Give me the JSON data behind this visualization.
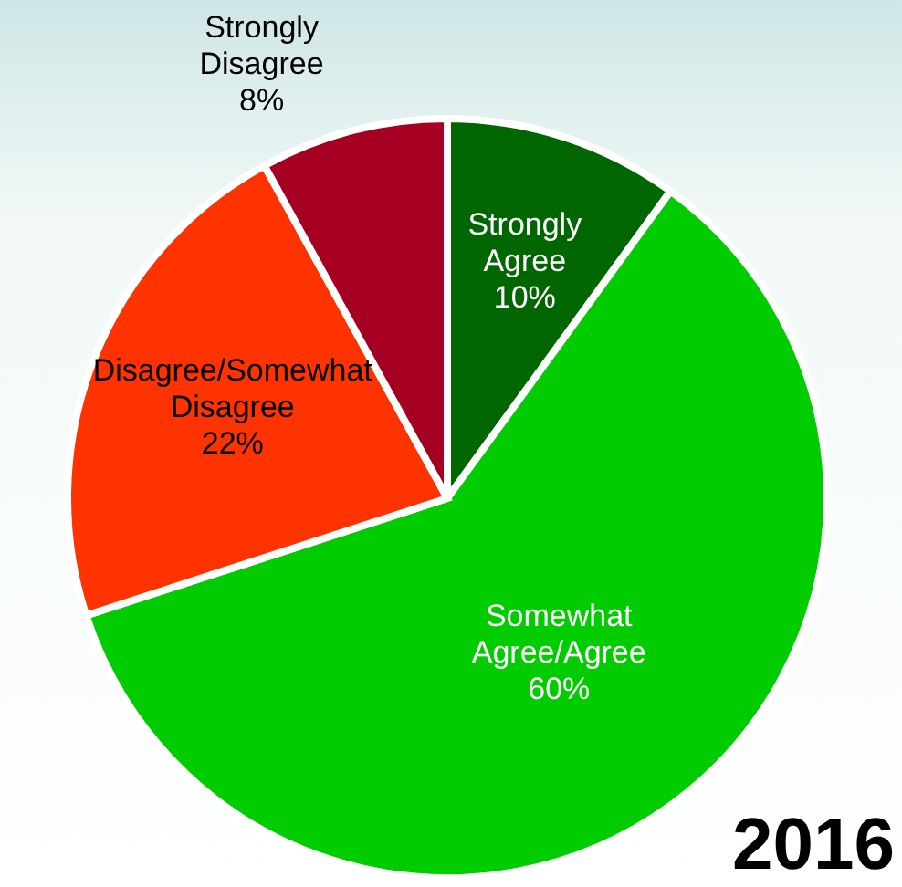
{
  "chart_data": {
    "type": "pie",
    "title": "2016",
    "categories": [
      "Strongly Agree",
      "Somewhat Agree/Agree",
      "Disagree/Somewhat Disagree",
      "Strongly Disagree"
    ],
    "values": [
      10,
      60,
      22,
      8
    ],
    "value_labels": [
      "10%",
      "60%",
      "22%",
      "8%"
    ],
    "colors": [
      "#006600",
      "#00cc00",
      "#ff3300",
      "#a50021"
    ]
  }
}
